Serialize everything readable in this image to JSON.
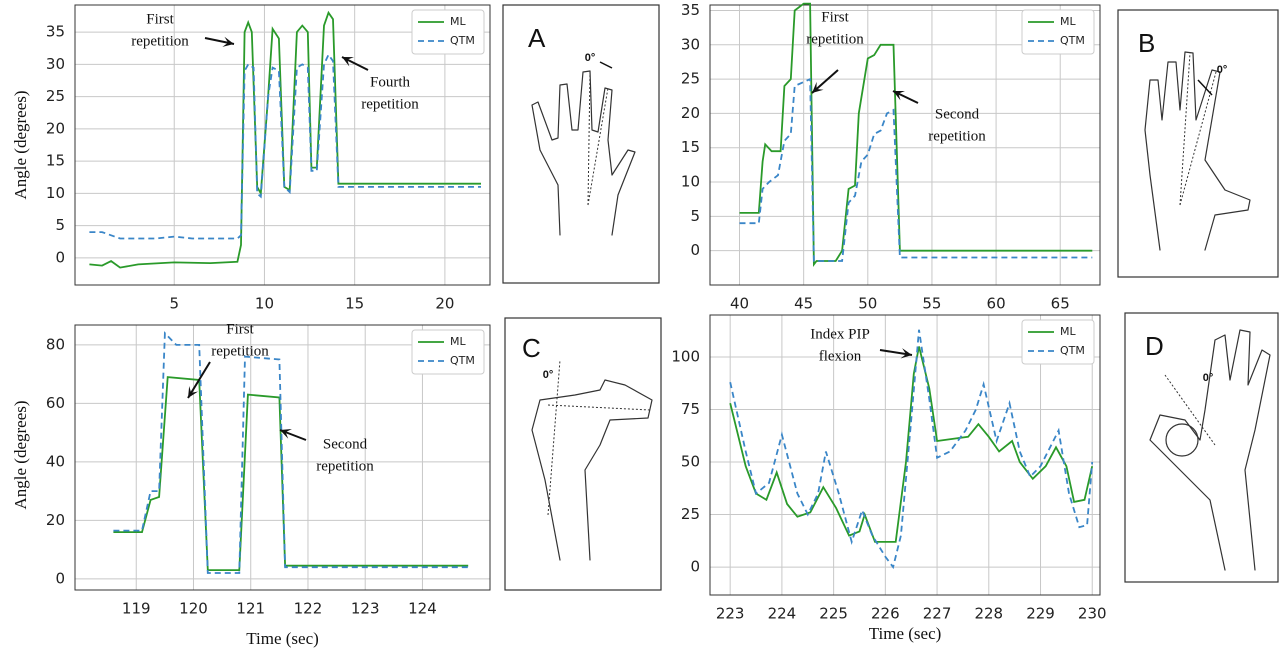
{
  "chart_data": [
    {
      "type": "line",
      "ylabel": "Angle (degrees)",
      "xlim": [
        -0.5,
        22.5
      ],
      "ylim": [
        -4.2,
        39.2
      ],
      "xticks": [
        5,
        10,
        15,
        20
      ],
      "yticks": [
        0,
        5,
        10,
        15,
        20,
        25,
        30,
        35
      ],
      "grid": true,
      "legend": "upper right",
      "annotations": [
        [
          "First",
          "repetition"
        ],
        [
          "Fourth",
          "repetition"
        ]
      ],
      "series": [
        {
          "name": "ML",
          "color": "#2a9a2a",
          "style": "solid",
          "x": [
            0.3,
            1,
            1.5,
            2,
            3,
            5,
            7,
            8.5,
            8.7,
            8.9,
            9.1,
            9.3,
            9.6,
            9.8,
            10.2,
            10.45,
            10.8,
            11.1,
            11.4,
            11.8,
            12.1,
            12.4,
            12.6,
            12.9,
            13.3,
            13.55,
            13.8,
            14.1,
            15,
            22
          ],
          "values": [
            -1,
            -1.2,
            -0.5,
            -1.5,
            -1,
            -0.7,
            -0.8,
            -0.6,
            2,
            35,
            36.5,
            35,
            11,
            10,
            25,
            35.5,
            34,
            11,
            10.5,
            35,
            36,
            35,
            14,
            14,
            36,
            38,
            37,
            11.5,
            11.5,
            11.5
          ]
        },
        {
          "name": "QTM",
          "color": "#3a86c8",
          "style": "dashed",
          "x": [
            0.3,
            1,
            2,
            4,
            5,
            6,
            8.5,
            8.7,
            8.9,
            9.1,
            9.4,
            9.6,
            9.8,
            10.2,
            10.45,
            10.8,
            11.1,
            11.4,
            11.8,
            12.1,
            12.4,
            12.6,
            12.9,
            13.3,
            13.55,
            13.8,
            14.1,
            22
          ],
          "values": [
            4,
            4,
            3,
            3,
            3.3,
            3,
            3,
            3.5,
            29,
            30,
            29.5,
            10,
            9.5,
            25,
            29.5,
            29,
            11,
            10.2,
            29.5,
            30,
            29.5,
            13.5,
            13.5,
            30,
            31.5,
            30.5,
            11,
            11
          ]
        }
      ]
    },
    {
      "type": "line",
      "xlim": [
        37.7,
        68.1
      ],
      "ylim": [
        -5,
        35.8
      ],
      "xticks": [
        40,
        45,
        50,
        55,
        60,
        65
      ],
      "yticks": [
        0,
        5,
        10,
        15,
        20,
        25,
        30,
        35
      ],
      "grid": true,
      "legend": "upper right",
      "annotations": [
        [
          "First",
          "repetition"
        ],
        [
          "Second",
          "repetition"
        ]
      ],
      "series": [
        {
          "name": "ML",
          "color": "#2a9a2a",
          "style": "solid",
          "x": [
            40,
            41.5,
            41.8,
            42,
            42.5,
            43.2,
            43.5,
            44,
            44.3,
            45,
            45.5,
            45.8,
            46,
            47.5,
            48,
            48.5,
            49,
            49.3,
            50,
            50.5,
            51,
            52,
            52.5,
            67.5
          ],
          "values": [
            5.5,
            5.5,
            13,
            15.5,
            14.5,
            14.5,
            24,
            25,
            35,
            36,
            36,
            -2,
            -1.5,
            -1.5,
            0,
            9,
            9.5,
            20,
            28,
            28.5,
            30,
            30,
            0,
            0
          ]
        },
        {
          "name": "QTM",
          "color": "#3a86c8",
          "style": "dashed",
          "x": [
            40,
            41.5,
            41.8,
            42.3,
            43,
            43.5,
            44,
            44.3,
            45.5,
            45.8,
            48,
            48.5,
            49,
            49.5,
            50,
            50.5,
            51,
            51.5,
            52,
            52.5,
            67.5
          ],
          "values": [
            4,
            4,
            9,
            10,
            11,
            16,
            17,
            24,
            25,
            -1.5,
            -1.5,
            7,
            8,
            13,
            14,
            17,
            17.5,
            20,
            20.5,
            -1,
            -1
          ]
        }
      ]
    },
    {
      "type": "line",
      "xlabel": "Time (sec)",
      "ylabel": "Angle (degrees)",
      "xlim": [
        117.93,
        125.18
      ],
      "ylim": [
        -3.8,
        86.8
      ],
      "xticks": [
        119,
        120,
        121,
        122,
        123,
        124
      ],
      "yticks": [
        0,
        20,
        40,
        60,
        80
      ],
      "grid": true,
      "legend": "upper right",
      "annotations": [
        [
          "First",
          "repetition"
        ],
        [
          "Second",
          "repetition"
        ]
      ],
      "series": [
        {
          "name": "ML",
          "color": "#2a9a2a",
          "style": "solid",
          "x": [
            118.6,
            119.1,
            119.25,
            119.4,
            119.55,
            120.1,
            120.25,
            120.8,
            120.95,
            121.5,
            121.6,
            124.8
          ],
          "values": [
            16,
            16,
            27,
            28,
            69,
            68,
            3,
            3,
            63,
            62,
            4.5,
            4.5
          ]
        },
        {
          "name": "QTM",
          "color": "#3a86c8",
          "style": "dashed",
          "x": [
            118.6,
            119.1,
            119.25,
            119.4,
            119.5,
            119.7,
            120.1,
            120.25,
            120.8,
            120.9,
            121.5,
            121.6,
            124.8
          ],
          "values": [
            16.5,
            16.5,
            30,
            30,
            84,
            80,
            80,
            2,
            2,
            76,
            75,
            4,
            4
          ]
        }
      ]
    },
    {
      "type": "line",
      "xlabel": "Time (sec)",
      "xlim": [
        222.61,
        230.15
      ],
      "ylim": [
        -13.3,
        120
      ],
      "xticks": [
        223,
        224,
        225,
        226,
        227,
        228,
        229,
        230
      ],
      "yticks": [
        0,
        25,
        50,
        75,
        100
      ],
      "grid": true,
      "legend": "upper right",
      "annotations": [
        [
          "Index PIP",
          "flexion"
        ]
      ],
      "series": [
        {
          "name": "ML",
          "color": "#2a9a2a",
          "style": "solid",
          "x": [
            223,
            223.3,
            223.5,
            223.7,
            223.9,
            224.1,
            224.3,
            224.55,
            224.8,
            225.05,
            225.3,
            225.5,
            225.6,
            225.8,
            226.2,
            226.4,
            226.55,
            226.65,
            226.85,
            227,
            227.3,
            227.6,
            227.8,
            228,
            228.2,
            228.45,
            228.6,
            228.85,
            229.1,
            229.3,
            229.5,
            229.65,
            229.85,
            230
          ],
          "values": [
            78,
            48,
            35,
            32,
            45,
            30,
            24,
            26,
            38,
            28,
            15,
            17,
            25,
            12,
            12,
            50,
            92,
            105,
            85,
            60,
            61,
            62,
            68,
            62,
            55,
            60,
            50,
            42,
            48,
            57,
            48,
            31,
            32,
            48
          ]
        },
        {
          "name": "QTM",
          "color": "#3a86c8",
          "style": "dashed",
          "x": [
            223,
            223.3,
            223.5,
            223.75,
            224,
            224.3,
            224.5,
            224.7,
            224.85,
            225.1,
            225.35,
            225.55,
            225.75,
            226,
            226.15,
            226.3,
            226.5,
            226.65,
            226.85,
            227,
            227.25,
            227.55,
            227.75,
            227.9,
            228.15,
            228.4,
            228.6,
            228.8,
            229,
            229.35,
            229.55,
            229.75,
            229.9,
            230
          ],
          "values": [
            88,
            55,
            35,
            40,
            63,
            35,
            25,
            35,
            55,
            35,
            12,
            27,
            15,
            5,
            0,
            15,
            70,
            113,
            80,
            52,
            55,
            65,
            75,
            87,
            60,
            78,
            55,
            43,
            48,
            65,
            35,
            19,
            20,
            50
          ]
        }
      ]
    }
  ],
  "panels": [
    {
      "label": "A",
      "angle_label": "0°"
    },
    {
      "label": "B",
      "angle_label": "0°"
    },
    {
      "label": "C",
      "angle_label": "0°"
    },
    {
      "label": "D",
      "angle_label": "0°"
    }
  ]
}
